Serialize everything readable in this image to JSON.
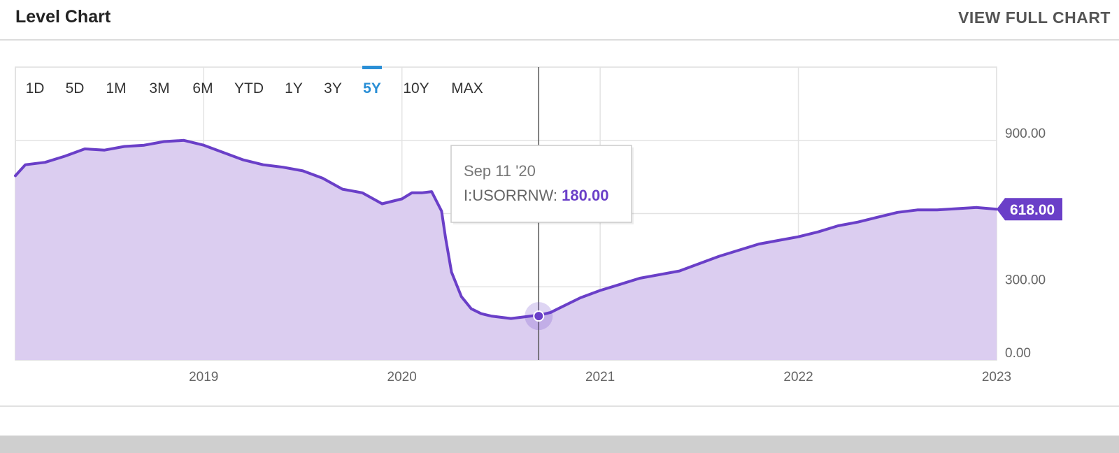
{
  "header": {
    "title": "Level Chart",
    "view_full_label": "VIEW FULL CHART"
  },
  "ranges": [
    "1D",
    "5D",
    "1M",
    "3M",
    "6M",
    "YTD",
    "1Y",
    "3Y",
    "5Y",
    "10Y",
    "MAX"
  ],
  "active_range": "5Y",
  "tooltip": {
    "date": "Sep 11 '20",
    "series": "I:USORRNW:",
    "value": "180.00"
  },
  "last_value_label": "618.00",
  "colors": {
    "accent": "#6a3fc8",
    "fill": "#dbcdf0",
    "active_tab": "#2a8fd6",
    "grid": "#e3e3e3"
  },
  "chart_data": {
    "type": "area",
    "series": [
      {
        "x": [
          2018.05,
          2018.1,
          2018.2,
          2018.3,
          2018.4,
          2018.5,
          2018.6,
          2018.7,
          2018.8,
          2018.9,
          2019.0,
          2019.1,
          2019.2,
          2019.3,
          2019.4,
          2019.5,
          2019.6,
          2019.7,
          2019.8,
          2019.9,
          2020.0,
          2020.05,
          2020.1,
          2020.15,
          2020.2,
          2020.22,
          2020.25,
          2020.3,
          2020.35,
          2020.4,
          2020.45,
          2020.5,
          2020.55,
          2020.6,
          2020.65,
          2020.7,
          2020.75,
          2020.8,
          2020.9,
          2021.0,
          2021.1,
          2021.2,
          2021.3,
          2021.4,
          2021.5,
          2021.6,
          2021.7,
          2021.8,
          2021.9,
          2022.0,
          2022.1,
          2022.2,
          2022.3,
          2022.4,
          2022.5,
          2022.6,
          2022.7,
          2022.8,
          2022.9,
          2023.0
        ],
        "values": [
          755,
          800,
          810,
          835,
          865,
          860,
          875,
          880,
          895,
          900,
          880,
          850,
          820,
          800,
          790,
          775,
          745,
          700,
          685,
          640,
          660,
          685,
          685,
          690,
          610,
          500,
          360,
          260,
          210,
          190,
          180,
          175,
          170,
          175,
          180,
          185,
          195,
          215,
          255,
          285,
          310,
          335,
          350,
          365,
          395,
          425,
          450,
          475,
          490,
          505,
          525,
          550,
          565,
          585,
          605,
          615,
          615,
          620,
          625,
          618
        ]
      }
    ],
    "ylim": [
      0,
      1200
    ],
    "xlim": [
      2018.05,
      2023.0
    ],
    "x_ticks": [
      "2019",
      "2020",
      "2021",
      "2022",
      "2023"
    ],
    "y_ticks": [
      "0.00",
      "300.00",
      "900.00"
    ],
    "grid": true
  }
}
